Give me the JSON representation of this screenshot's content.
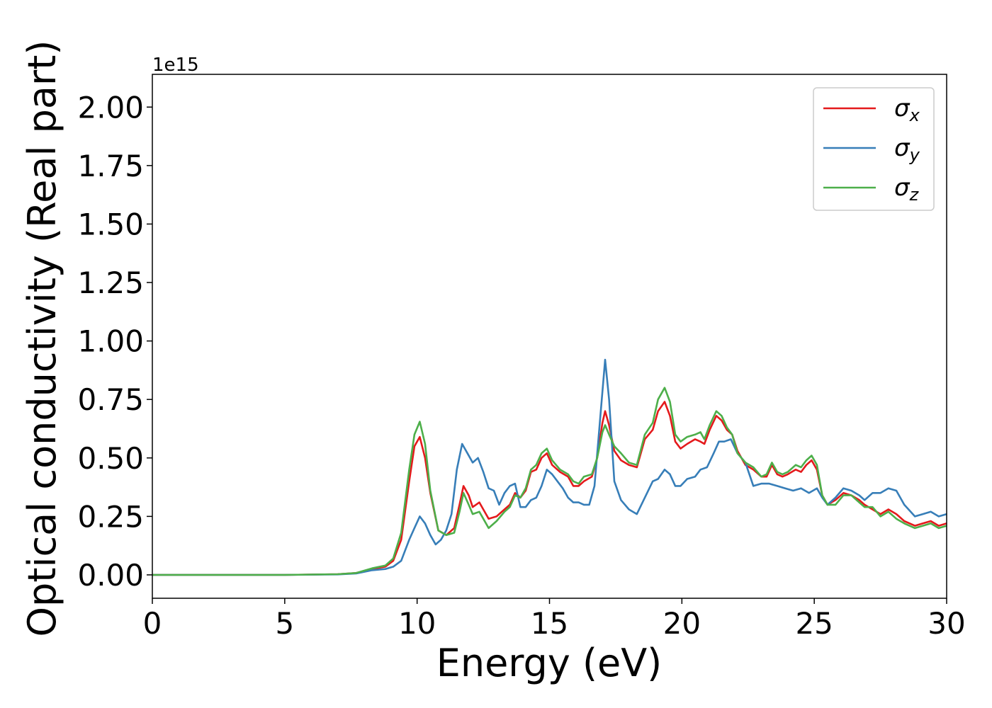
{
  "chart_data": {
    "type": "line",
    "xlabel": "Energy (eV)",
    "ylabel": "Optical conductivity (Real part)",
    "y_offset_label": "1e15",
    "xlim": [
      0,
      30
    ],
    "ylim": [
      -0.1,
      2.14
    ],
    "y_scale_factor": 1000000000000000.0,
    "xticks": [
      0,
      5,
      10,
      15,
      20,
      25,
      30
    ],
    "xtick_labels": [
      "0",
      "5",
      "10",
      "15",
      "20",
      "25",
      "30"
    ],
    "yticks": [
      0.0,
      0.25,
      0.5,
      0.75,
      1.0,
      1.25,
      1.5,
      1.75,
      2.0
    ],
    "ytick_labels": [
      "0.00",
      "0.25",
      "0.50",
      "0.75",
      "1.00",
      "1.25",
      "1.50",
      "1.75",
      "2.00"
    ],
    "grid": false,
    "legend_position": "top-right",
    "series": [
      {
        "name": "σx",
        "symbol": "σ",
        "subscript": "x",
        "color": "#e41a1c",
        "points": [
          [
            0,
            0
          ],
          [
            5,
            0
          ],
          [
            7,
            0.003
          ],
          [
            7.7,
            0.008
          ],
          [
            8.3,
            0.025
          ],
          [
            8.8,
            0.035
          ],
          [
            9.1,
            0.06
          ],
          [
            9.4,
            0.15
          ],
          [
            9.7,
            0.4
          ],
          [
            9.9,
            0.55
          ],
          [
            10.1,
            0.59
          ],
          [
            10.3,
            0.5
          ],
          [
            10.5,
            0.35
          ],
          [
            10.8,
            0.19
          ],
          [
            11.1,
            0.17
          ],
          [
            11.4,
            0.2
          ],
          [
            11.6,
            0.3
          ],
          [
            11.75,
            0.38
          ],
          [
            11.95,
            0.34
          ],
          [
            12.1,
            0.29
          ],
          [
            12.35,
            0.31
          ],
          [
            12.5,
            0.28
          ],
          [
            12.7,
            0.24
          ],
          [
            13,
            0.25
          ],
          [
            13.3,
            0.28
          ],
          [
            13.5,
            0.3
          ],
          [
            13.7,
            0.35
          ],
          [
            13.9,
            0.33
          ],
          [
            14.1,
            0.36
          ],
          [
            14.3,
            0.44
          ],
          [
            14.5,
            0.45
          ],
          [
            14.7,
            0.5
          ],
          [
            14.9,
            0.52
          ],
          [
            15.1,
            0.47
          ],
          [
            15.4,
            0.44
          ],
          [
            15.7,
            0.42
          ],
          [
            15.9,
            0.38
          ],
          [
            16.1,
            0.38
          ],
          [
            16.3,
            0.4
          ],
          [
            16.6,
            0.42
          ],
          [
            16.8,
            0.5
          ],
          [
            17.0,
            0.65
          ],
          [
            17.1,
            0.7
          ],
          [
            17.25,
            0.64
          ],
          [
            17.45,
            0.53
          ],
          [
            17.7,
            0.49
          ],
          [
            18,
            0.47
          ],
          [
            18.3,
            0.46
          ],
          [
            18.6,
            0.58
          ],
          [
            18.9,
            0.62
          ],
          [
            19.1,
            0.7
          ],
          [
            19.35,
            0.74
          ],
          [
            19.55,
            0.68
          ],
          [
            19.75,
            0.57
          ],
          [
            19.95,
            0.54
          ],
          [
            20.2,
            0.56
          ],
          [
            20.5,
            0.58
          ],
          [
            20.7,
            0.57
          ],
          [
            20.85,
            0.56
          ],
          [
            21.05,
            0.62
          ],
          [
            21.3,
            0.68
          ],
          [
            21.5,
            0.66
          ],
          [
            21.7,
            0.62
          ],
          [
            21.9,
            0.6
          ],
          [
            22.1,
            0.53
          ],
          [
            22.4,
            0.47
          ],
          [
            22.7,
            0.45
          ],
          [
            23.0,
            0.42
          ],
          [
            23.2,
            0.42
          ],
          [
            23.4,
            0.47
          ],
          [
            23.6,
            0.43
          ],
          [
            23.8,
            0.42
          ],
          [
            24.0,
            0.43
          ],
          [
            24.3,
            0.45
          ],
          [
            24.5,
            0.44
          ],
          [
            24.7,
            0.47
          ],
          [
            24.9,
            0.49
          ],
          [
            25.1,
            0.45
          ],
          [
            25.3,
            0.34
          ],
          [
            25.5,
            0.3
          ],
          [
            25.8,
            0.32
          ],
          [
            26.1,
            0.35
          ],
          [
            26.4,
            0.34
          ],
          [
            26.7,
            0.32
          ],
          [
            26.9,
            0.3
          ],
          [
            27.2,
            0.28
          ],
          [
            27.5,
            0.26
          ],
          [
            27.8,
            0.28
          ],
          [
            28.1,
            0.26
          ],
          [
            28.4,
            0.23
          ],
          [
            28.8,
            0.21
          ],
          [
            29.1,
            0.22
          ],
          [
            29.4,
            0.23
          ],
          [
            29.7,
            0.21
          ],
          [
            30,
            0.22
          ]
        ]
      },
      {
        "name": "σy",
        "symbol": "σ",
        "subscript": "y",
        "color": "#377eb8",
        "points": [
          [
            0,
            0
          ],
          [
            5,
            0
          ],
          [
            7,
            0.002
          ],
          [
            7.7,
            0.006
          ],
          [
            8.3,
            0.02
          ],
          [
            8.8,
            0.025
          ],
          [
            9.1,
            0.035
          ],
          [
            9.4,
            0.06
          ],
          [
            9.7,
            0.15
          ],
          [
            9.9,
            0.2
          ],
          [
            10.1,
            0.25
          ],
          [
            10.3,
            0.22
          ],
          [
            10.5,
            0.17
          ],
          [
            10.7,
            0.13
          ],
          [
            10.9,
            0.15
          ],
          [
            11.1,
            0.19
          ],
          [
            11.3,
            0.26
          ],
          [
            11.5,
            0.45
          ],
          [
            11.7,
            0.56
          ],
          [
            11.9,
            0.52
          ],
          [
            12.1,
            0.48
          ],
          [
            12.3,
            0.5
          ],
          [
            12.5,
            0.44
          ],
          [
            12.7,
            0.37
          ],
          [
            12.9,
            0.36
          ],
          [
            13.1,
            0.3
          ],
          [
            13.3,
            0.35
          ],
          [
            13.5,
            0.38
          ],
          [
            13.7,
            0.39
          ],
          [
            13.9,
            0.29
          ],
          [
            14.1,
            0.29
          ],
          [
            14.3,
            0.32
          ],
          [
            14.5,
            0.33
          ],
          [
            14.7,
            0.38
          ],
          [
            14.9,
            0.45
          ],
          [
            15.1,
            0.43
          ],
          [
            15.3,
            0.4
          ],
          [
            15.5,
            0.37
          ],
          [
            15.7,
            0.33
          ],
          [
            15.9,
            0.31
          ],
          [
            16.1,
            0.31
          ],
          [
            16.3,
            0.3
          ],
          [
            16.5,
            0.3
          ],
          [
            16.7,
            0.38
          ],
          [
            16.9,
            0.65
          ],
          [
            17.1,
            0.92
          ],
          [
            17.25,
            0.75
          ],
          [
            17.45,
            0.4
          ],
          [
            17.7,
            0.32
          ],
          [
            18,
            0.28
          ],
          [
            18.3,
            0.26
          ],
          [
            18.6,
            0.33
          ],
          [
            18.9,
            0.4
          ],
          [
            19.1,
            0.41
          ],
          [
            19.35,
            0.45
          ],
          [
            19.55,
            0.43
          ],
          [
            19.75,
            0.38
          ],
          [
            19.95,
            0.38
          ],
          [
            20.2,
            0.41
          ],
          [
            20.5,
            0.42
          ],
          [
            20.7,
            0.45
          ],
          [
            20.95,
            0.46
          ],
          [
            21.2,
            0.52
          ],
          [
            21.4,
            0.57
          ],
          [
            21.6,
            0.57
          ],
          [
            21.85,
            0.58
          ],
          [
            22.1,
            0.52
          ],
          [
            22.4,
            0.48
          ],
          [
            22.7,
            0.38
          ],
          [
            23.0,
            0.39
          ],
          [
            23.3,
            0.39
          ],
          [
            23.6,
            0.38
          ],
          [
            23.9,
            0.37
          ],
          [
            24.2,
            0.36
          ],
          [
            24.5,
            0.37
          ],
          [
            24.8,
            0.35
          ],
          [
            25.1,
            0.37
          ],
          [
            25.3,
            0.33
          ],
          [
            25.5,
            0.3
          ],
          [
            25.8,
            0.33
          ],
          [
            26.1,
            0.37
          ],
          [
            26.4,
            0.36
          ],
          [
            26.7,
            0.34
          ],
          [
            26.9,
            0.32
          ],
          [
            27.2,
            0.35
          ],
          [
            27.5,
            0.35
          ],
          [
            27.8,
            0.37
          ],
          [
            28.1,
            0.36
          ],
          [
            28.4,
            0.3
          ],
          [
            28.8,
            0.25
          ],
          [
            29.1,
            0.26
          ],
          [
            29.4,
            0.27
          ],
          [
            29.7,
            0.25
          ],
          [
            30,
            0.26
          ]
        ]
      },
      {
        "name": "σz",
        "symbol": "σ",
        "subscript": "z",
        "color": "#4daf4a",
        "points": [
          [
            0,
            0
          ],
          [
            5,
            0
          ],
          [
            7,
            0.003
          ],
          [
            7.7,
            0.008
          ],
          [
            8.3,
            0.028
          ],
          [
            8.8,
            0.04
          ],
          [
            9.1,
            0.07
          ],
          [
            9.4,
            0.18
          ],
          [
            9.7,
            0.45
          ],
          [
            9.9,
            0.6
          ],
          [
            10.1,
            0.655
          ],
          [
            10.3,
            0.56
          ],
          [
            10.5,
            0.36
          ],
          [
            10.8,
            0.19
          ],
          [
            11.1,
            0.17
          ],
          [
            11.4,
            0.18
          ],
          [
            11.6,
            0.27
          ],
          [
            11.75,
            0.35
          ],
          [
            11.95,
            0.3
          ],
          [
            12.1,
            0.26
          ],
          [
            12.35,
            0.27
          ],
          [
            12.5,
            0.24
          ],
          [
            12.7,
            0.2
          ],
          [
            13,
            0.23
          ],
          [
            13.3,
            0.27
          ],
          [
            13.5,
            0.29
          ],
          [
            13.7,
            0.34
          ],
          [
            13.9,
            0.33
          ],
          [
            14.1,
            0.37
          ],
          [
            14.3,
            0.45
          ],
          [
            14.5,
            0.47
          ],
          [
            14.7,
            0.52
          ],
          [
            14.9,
            0.54
          ],
          [
            15.1,
            0.49
          ],
          [
            15.4,
            0.45
          ],
          [
            15.7,
            0.43
          ],
          [
            15.9,
            0.4
          ],
          [
            16.1,
            0.39
          ],
          [
            16.3,
            0.42
          ],
          [
            16.6,
            0.43
          ],
          [
            16.8,
            0.5
          ],
          [
            17.0,
            0.61
          ],
          [
            17.1,
            0.64
          ],
          [
            17.25,
            0.6
          ],
          [
            17.45,
            0.55
          ],
          [
            17.7,
            0.52
          ],
          [
            18,
            0.48
          ],
          [
            18.3,
            0.47
          ],
          [
            18.6,
            0.6
          ],
          [
            18.9,
            0.65
          ],
          [
            19.1,
            0.75
          ],
          [
            19.35,
            0.8
          ],
          [
            19.55,
            0.74
          ],
          [
            19.75,
            0.6
          ],
          [
            19.95,
            0.57
          ],
          [
            20.2,
            0.59
          ],
          [
            20.5,
            0.6
          ],
          [
            20.7,
            0.61
          ],
          [
            20.85,
            0.58
          ],
          [
            21.05,
            0.64
          ],
          [
            21.3,
            0.7
          ],
          [
            21.5,
            0.68
          ],
          [
            21.7,
            0.63
          ],
          [
            21.9,
            0.6
          ],
          [
            22.1,
            0.52
          ],
          [
            22.4,
            0.48
          ],
          [
            22.7,
            0.46
          ],
          [
            23.0,
            0.42
          ],
          [
            23.2,
            0.43
          ],
          [
            23.4,
            0.48
          ],
          [
            23.6,
            0.44
          ],
          [
            23.8,
            0.43
          ],
          [
            24.0,
            0.44
          ],
          [
            24.3,
            0.47
          ],
          [
            24.5,
            0.46
          ],
          [
            24.7,
            0.49
          ],
          [
            24.9,
            0.51
          ],
          [
            25.1,
            0.47
          ],
          [
            25.3,
            0.34
          ],
          [
            25.5,
            0.3
          ],
          [
            25.8,
            0.3
          ],
          [
            26.1,
            0.34
          ],
          [
            26.4,
            0.34
          ],
          [
            26.7,
            0.31
          ],
          [
            26.9,
            0.29
          ],
          [
            27.2,
            0.29
          ],
          [
            27.5,
            0.25
          ],
          [
            27.8,
            0.27
          ],
          [
            28.1,
            0.24
          ],
          [
            28.4,
            0.22
          ],
          [
            28.8,
            0.2
          ],
          [
            29.1,
            0.21
          ],
          [
            29.4,
            0.22
          ],
          [
            29.7,
            0.2
          ],
          [
            30,
            0.21
          ]
        ]
      }
    ]
  }
}
